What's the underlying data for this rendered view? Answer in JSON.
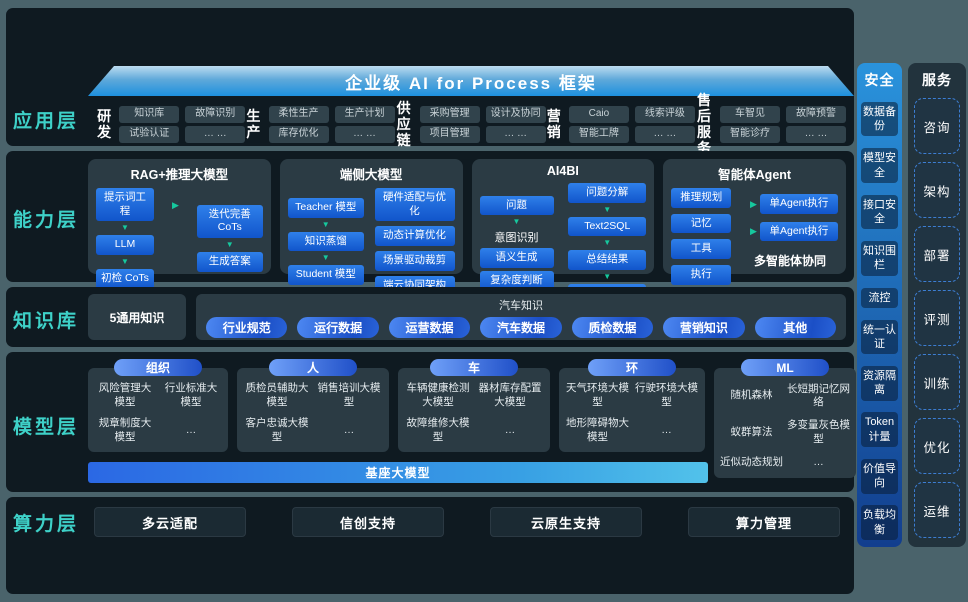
{
  "title": "企业级 AI for Process 框架",
  "icons": {
    "down": "▼",
    "right": "▶"
  },
  "layers": {
    "app": {
      "label": "应用层",
      "categories": [
        {
          "name": "研发",
          "chips": [
            "知识库",
            "故障识别",
            "试验认证",
            "… …"
          ]
        },
        {
          "name": "生产",
          "chips": [
            "柔性生产",
            "生产计划",
            "库存优化",
            "… …"
          ]
        },
        {
          "name": "供应链",
          "chips": [
            "采购管理",
            "设计及协同",
            "项目管理",
            "… …"
          ]
        },
        {
          "name": "营销",
          "chips": [
            "Caio",
            "线索评级",
            "智能工牌",
            "… …"
          ]
        },
        {
          "name": "售后服务",
          "chips": [
            "车智见",
            "故障预警",
            "智能诊疗",
            "… …"
          ]
        }
      ]
    },
    "capability": {
      "label": "能力层",
      "rag": {
        "title": "RAG+推理大模型",
        "left": [
          "提示词工程",
          "LLM",
          "初检 CoTs"
        ],
        "right": [
          "迭代完善CoTs",
          "生成答案"
        ]
      },
      "edge": {
        "title": "端侧大模型",
        "left": [
          "Teacher 模型",
          "知识蒸馏",
          "Student 模型"
        ],
        "right": [
          "硬件适配与优化",
          "动态计算优化",
          "场景驱动裁剪",
          "端云协同架构"
        ]
      },
      "ai4bi": {
        "title": "AI4BI",
        "left": [
          "问题",
          "意图识别",
          "语义生成",
          "复杂度判断"
        ],
        "right": [
          "问题分解",
          "Text2SQL",
          "总结结果",
          "图表展示"
        ]
      },
      "agent": {
        "title": "智能体Agent",
        "left": [
          "推理规划",
          "记忆",
          "工具",
          "执行"
        ],
        "right": [
          "单Agent执行",
          "单Agent执行"
        ],
        "caption": "多智能体协同"
      }
    },
    "knowledge": {
      "label": "知识库",
      "general": "5通用知识",
      "auto_title": "汽车知识",
      "pills": [
        "行业规范",
        "运行数据",
        "运营数据",
        "汽车数据",
        "质检数据",
        "营销知识",
        "其他"
      ]
    },
    "model": {
      "label": "模型层",
      "base": "基座大模型",
      "groups": [
        {
          "name": "组织",
          "items": [
            "风险管理大模型",
            "行业标准大模型",
            "规章制度大模型",
            "…"
          ]
        },
        {
          "name": "人",
          "items": [
            "质检员辅助大模型",
            "销售培训大模型",
            "客户忠诚大模型",
            "…"
          ]
        },
        {
          "name": "车",
          "items": [
            "车辆健康检测大模型",
            "器材库存配置大模型",
            "故障维修大模型",
            "…"
          ]
        },
        {
          "name": "环",
          "items": [
            "天气环境大模型",
            "行驶环境大模型",
            "地形障碍物大模型",
            "…"
          ]
        },
        {
          "name": "ML",
          "items": [
            "随机森林",
            "长短期记忆网络",
            "蚁群算法",
            "多变量灰色模型",
            "近似动态规划",
            "…"
          ]
        }
      ]
    },
    "compute": {
      "label": "算力层",
      "buttons": [
        "多云适配",
        "信创支持",
        "云原生支持",
        "算力管理"
      ]
    }
  },
  "security": {
    "title": "安全",
    "items": [
      "数据备份",
      "模型安全",
      "接口安全",
      "知识围栏",
      "流控",
      "统一认证",
      "资源隔离",
      "Token计量",
      "价值导向",
      "负载均衡"
    ]
  },
  "services": {
    "title": "服务",
    "items": [
      "咨询",
      "架构",
      "部署",
      "评测",
      "训练",
      "优化",
      "运维"
    ]
  }
}
